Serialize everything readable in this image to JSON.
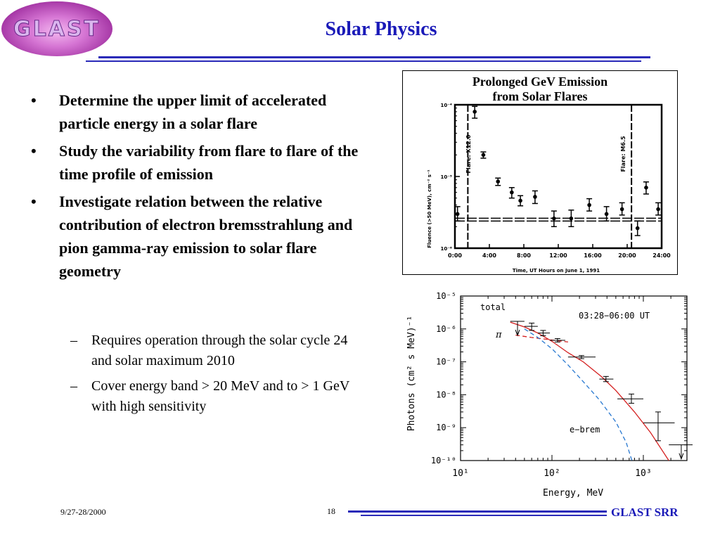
{
  "logo": {
    "text": "GLAST"
  },
  "title": "Solar Physics",
  "bullets": [
    "Determine the upper limit of accelerated particle energy in a solar flare",
    "Study the variability from flare to flare of the time profile of emission",
    "Investigate relation between the relative contribution of electron bremsstrahlung and pion gamma-ray emission to solar flare geometry"
  ],
  "sub_bullets": [
    "Requires operation through the solar cycle 24 and solar maximum 2010",
    "Cover energy band > 20 MeV and to > 1 GeV with high sensitivity"
  ],
  "figure_top": {
    "title_line1": "Prolonged GeV Emission",
    "title_line2": "from Solar Flares",
    "ylabel": "Fluence (>50 MeV), cm⁻² s⁻¹",
    "xlabel": "Time, UT Hours on June 1, 1991",
    "flare_label_1": "Flare: X12.0",
    "flare_label_2": "Flare: M6.5"
  },
  "figure_bottom": {
    "label_total": "total",
    "label_pi": "π",
    "label_ebrem": "e−brem",
    "time_label": "03:28−06:00 UT",
    "xlabel": "Energy, MeV",
    "ylabel": "Photons (cm² s MeV)⁻¹"
  },
  "chart_data": [
    {
      "type": "scatter",
      "title": "Prolonged GeV Emission from Solar Flares",
      "xlabel": "Time, UT Hours on June 1, 1991",
      "ylabel": "Fluence (>50 MeV), cm⁻² s⁻¹",
      "y_scale": "log",
      "xlim": [
        0,
        24
      ],
      "ylim": [
        1e-06,
        0.0001
      ],
      "x_ticks": [
        "0:00",
        "4:00",
        "8:00",
        "12:00",
        "16:00",
        "20:00",
        "24:00"
      ],
      "y_ticks": [
        "10⁻⁶",
        "10⁻⁵",
        "10⁻⁴"
      ],
      "points": [
        {
          "x": 0.3,
          "y": 3e-06,
          "err_lo": 2.4e-06,
          "err_hi": 3.8e-06
        },
        {
          "x": 2.3,
          "y": 8e-05,
          "err_lo": 6.5e-05,
          "err_hi": 9.5e-05
        },
        {
          "x": 3.3,
          "y": 2e-05,
          "err_lo": 1.8e-05,
          "err_hi": 2.2e-05
        },
        {
          "x": 5.0,
          "y": 8.5e-06,
          "err_lo": 7.5e-06,
          "err_hi": 9.5e-06
        },
        {
          "x": 6.6,
          "y": 6e-06,
          "err_lo": 5e-06,
          "err_hi": 7e-06
        },
        {
          "x": 7.6,
          "y": 4.6e-06,
          "err_lo": 3.9e-06,
          "err_hi": 5.4e-06
        },
        {
          "x": 9.3,
          "y": 5.2e-06,
          "err_lo": 4.2e-06,
          "err_hi": 6.3e-06
        },
        {
          "x": 11.5,
          "y": 2.6e-06,
          "err_lo": 2e-06,
          "err_hi": 3.3e-06
        },
        {
          "x": 13.5,
          "y": 2.6e-06,
          "err_lo": 2e-06,
          "err_hi": 3.4e-06
        },
        {
          "x": 15.6,
          "y": 4e-06,
          "err_lo": 3.3e-06,
          "err_hi": 4.9e-06
        },
        {
          "x": 17.6,
          "y": 3e-06,
          "err_lo": 2.4e-06,
          "err_hi": 3.8e-06
        },
        {
          "x": 19.4,
          "y": 3.5e-06,
          "err_lo": 2.9e-06,
          "err_hi": 4.3e-06
        },
        {
          "x": 21.2,
          "y": 1.9e-06,
          "err_lo": 1.5e-06,
          "err_hi": 2.4e-06
        },
        {
          "x": 22.2,
          "y": 7e-06,
          "err_lo": 5.7e-06,
          "err_hi": 8.4e-06
        },
        {
          "x": 23.6,
          "y": 3.5e-06,
          "err_lo": 2.9e-06,
          "err_hi": 4.3e-06
        }
      ],
      "flare_lines_x": [
        1.5,
        20.5
      ],
      "background_level": 2.5e-06
    },
    {
      "type": "line",
      "time_label": "03:28−06:00 UT",
      "xlabel": "Energy, MeV",
      "ylabel": "Photons (cm² s MeV)⁻¹",
      "x_scale": "log",
      "y_scale": "log",
      "xlim": [
        10,
        3000
      ],
      "ylim": [
        1e-10,
        1e-05
      ],
      "x_ticks": [
        "10¹",
        "10²",
        "10³"
      ],
      "y_ticks": [
        "10⁻⁵",
        "10⁻⁶",
        "10⁻⁷",
        "10⁻⁸",
        "10⁻⁹",
        "10⁻¹⁰"
      ],
      "series": [
        {
          "name": "total",
          "style": "solid",
          "color": "#d42020",
          "x": [
            35,
            50,
            70,
            100,
            150,
            220,
            350,
            500,
            800,
            1200,
            1900
          ],
          "y": [
            1.6e-06,
            1.15e-06,
            7.5e-07,
            4.2e-07,
            1.9e-07,
            1e-07,
            3.5e-08,
            1.35e-08,
            3e-09,
            7e-10,
            1e-10
          ]
        },
        {
          "name": "π",
          "style": "dashed",
          "color": "#d42020",
          "x": [
            40,
            60,
            80,
            100,
            150
          ],
          "y": [
            6.5e-07,
            5.5e-07,
            5e-07,
            4.6e-07,
            4e-07
          ]
        },
        {
          "name": "e−brem",
          "style": "dashed",
          "color": "#2878d0",
          "x": [
            50,
            70,
            100,
            150,
            220,
            330,
            500,
            650,
            750
          ],
          "y": [
            1e-06,
            5.5e-07,
            2.5e-07,
            8e-08,
            2.5e-08,
            7e-09,
            1.5e-09,
            3.5e-10,
            1e-10
          ]
        },
        {
          "name": "data",
          "style": "points",
          "points": [
            {
              "x": 42,
              "y": 1.7e-06,
              "xlo": 35,
              "xhi": 50,
              "upper_limit": true
            },
            {
              "x": 60,
              "y": 1.2e-06,
              "xlo": 50,
              "xhi": 70,
              "ylo": 9e-07,
              "yhi": 1.5e-06
            },
            {
              "x": 80,
              "y": 7.5e-07,
              "xlo": 70,
              "xhi": 95,
              "ylo": 6.2e-07,
              "yhi": 9e-07
            },
            {
              "x": 115,
              "y": 4.5e-07,
              "xlo": 95,
              "xhi": 140,
              "ylo": 4e-07,
              "yhi": 5.1e-07
            },
            {
              "x": 210,
              "y": 1.4e-07,
              "xlo": 150,
              "xhi": 300,
              "ylo": 1.25e-07,
              "yhi": 1.55e-07
            },
            {
              "x": 390,
              "y": 3e-08,
              "xlo": 330,
              "xhi": 470,
              "ylo": 2.5e-08,
              "yhi": 3.6e-08
            },
            {
              "x": 740,
              "y": 7.5e-09,
              "xlo": 520,
              "xhi": 1000,
              "ylo": 5.5e-09,
              "yhi": 1.05e-08
            },
            {
              "x": 1450,
              "y": 1.4e-09,
              "xlo": 1000,
              "xhi": 2200,
              "ylo": 4e-10,
              "yhi": 3e-09
            },
            {
              "x": 2600,
              "y": 3e-10,
              "xlo": 1900,
              "xhi": 3600,
              "upper_limit": true
            }
          ]
        }
      ]
    }
  ],
  "footer": {
    "date": "9/27-28/2000",
    "page": "18",
    "right": "GLAST SRR"
  },
  "colors": {
    "title": "#1a1ab8",
    "rule": "#2a2ab8",
    "logo": "#c060c8"
  }
}
